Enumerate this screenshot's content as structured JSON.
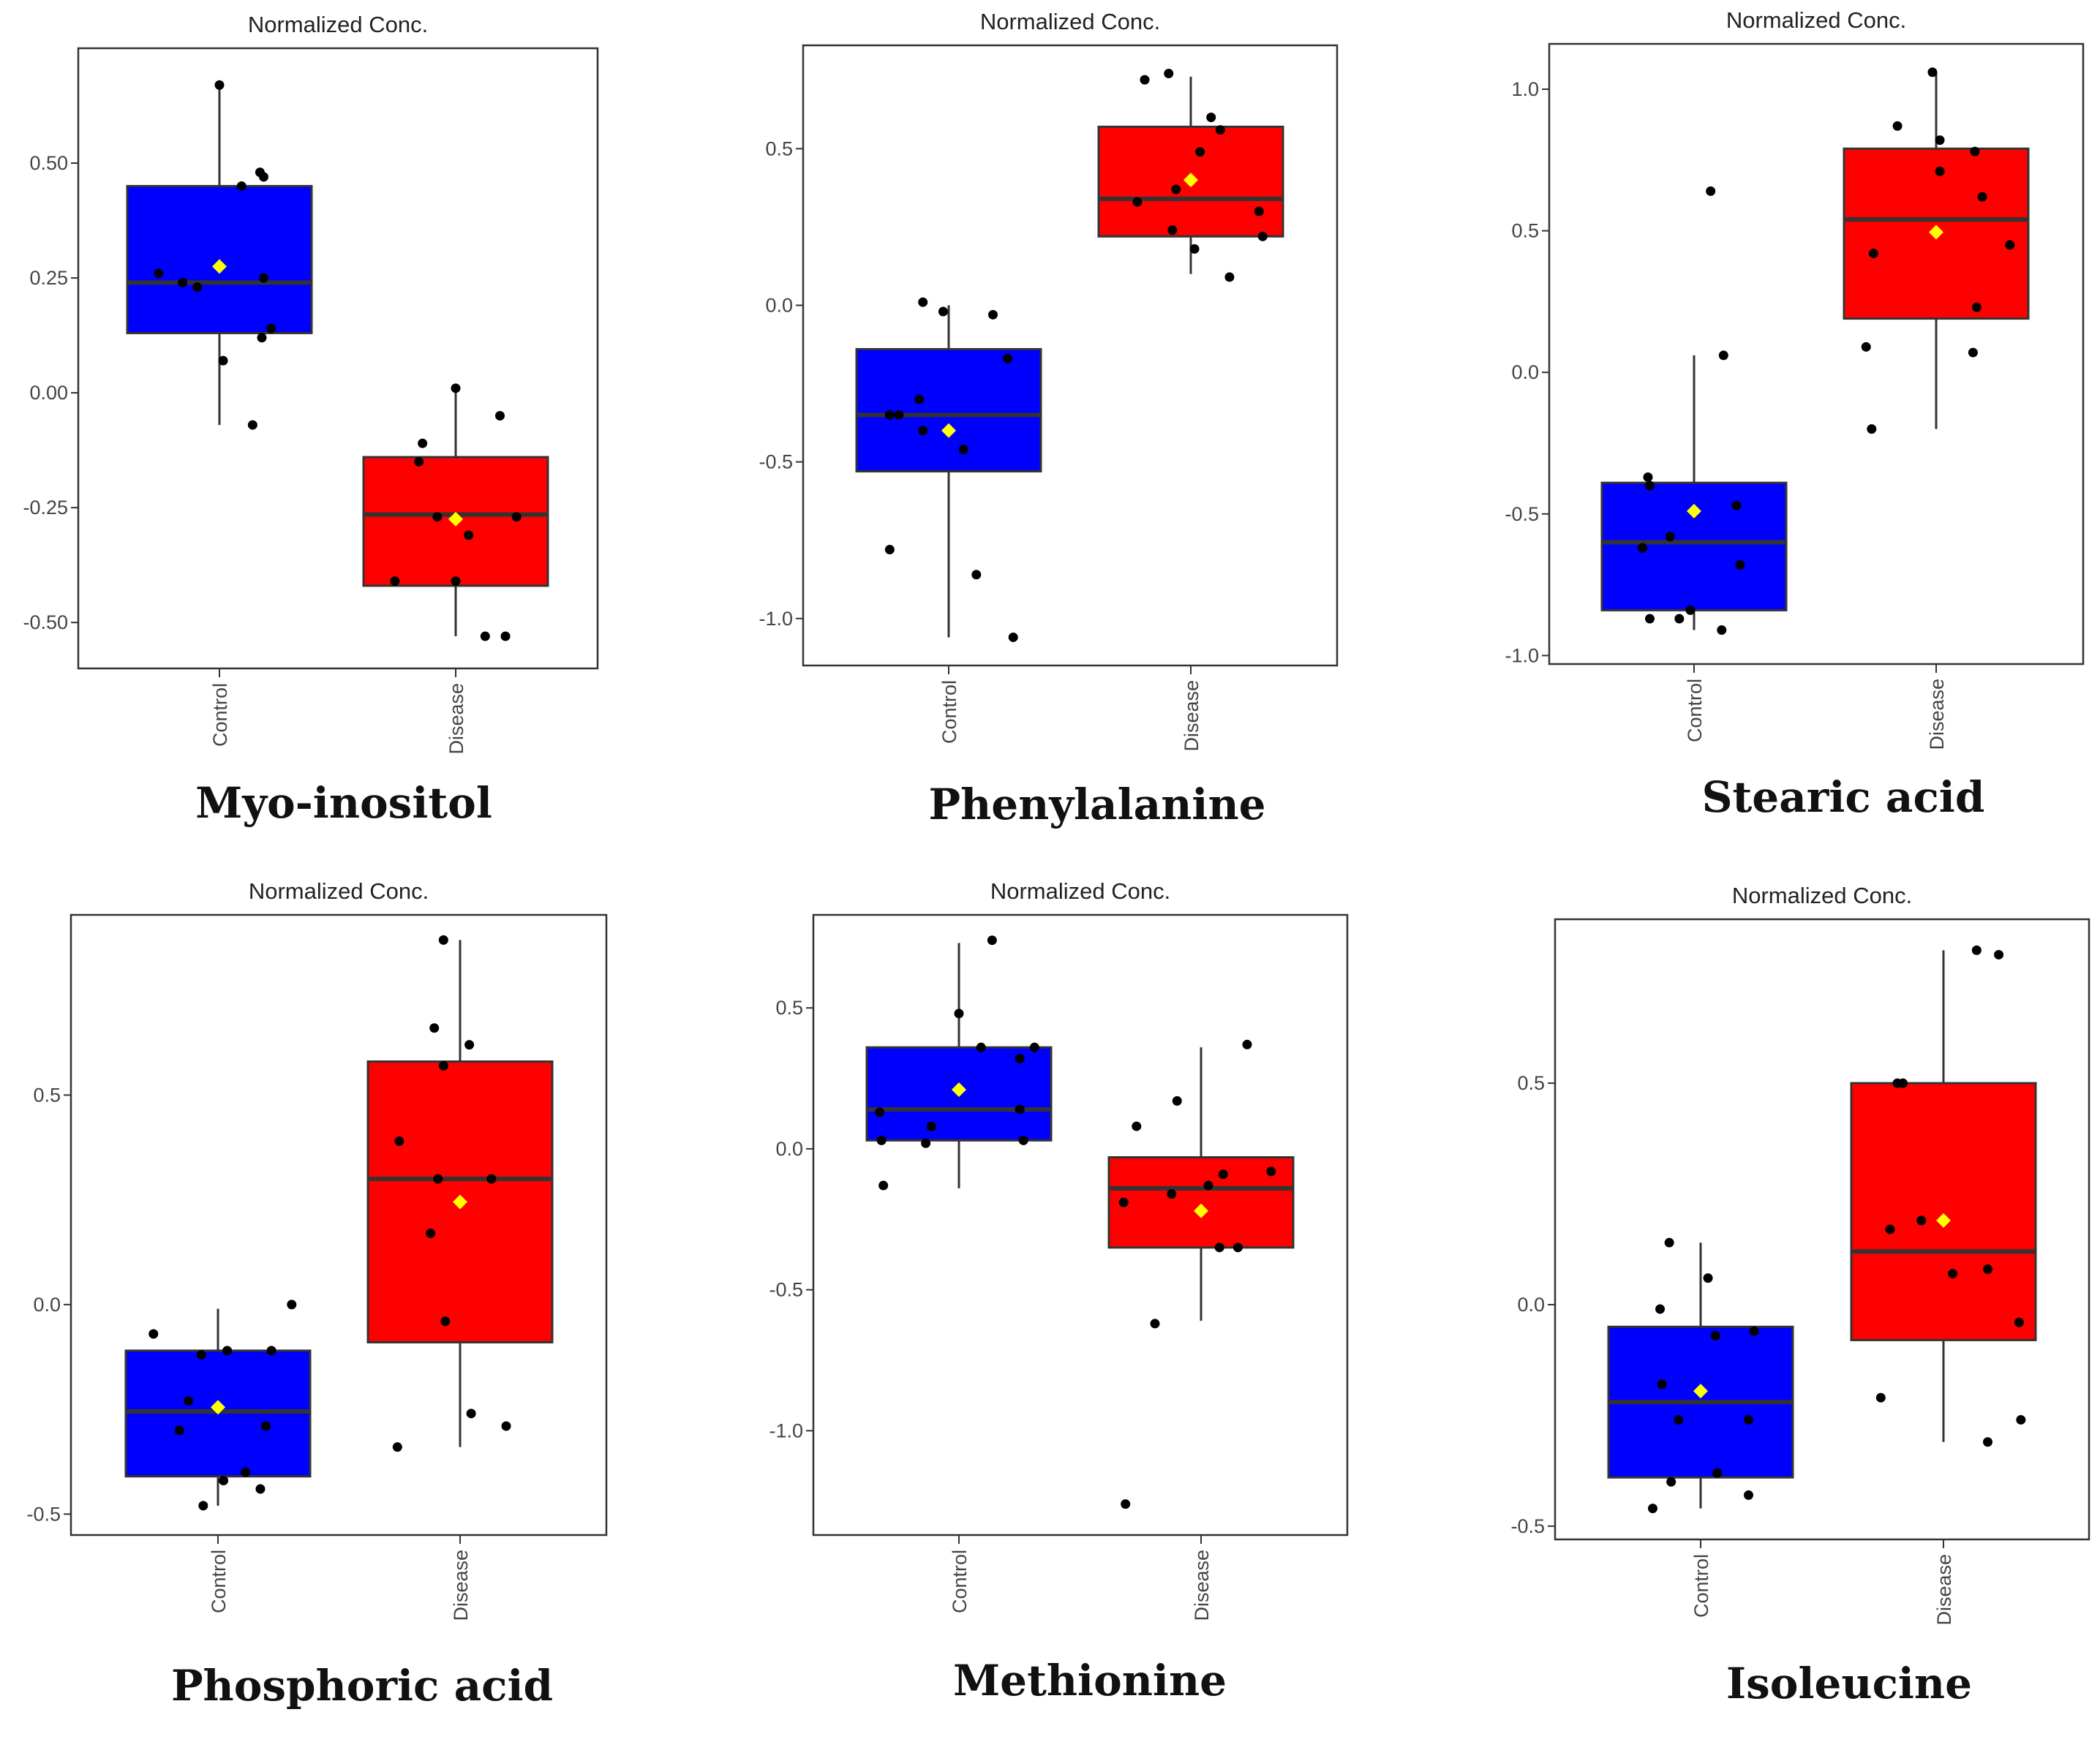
{
  "figure_title": "",
  "colors": {
    "control": "#0000ff",
    "disease": "#ff0000",
    "mean": "#ffff00",
    "median": "#333333",
    "point": "#000000",
    "frame": "#333333"
  },
  "chart_data": [
    {
      "type": "box",
      "title": "Normalized Conc.",
      "compound": "Myo-inositol",
      "categories": [
        "Control",
        "Disease"
      ],
      "ylim": [
        -0.6,
        0.75
      ],
      "yticks": [
        0.5,
        0.25,
        0.0,
        -0.25,
        -0.5
      ],
      "ytick_labels": [
        "0.50",
        "0.25",
        "0.00",
        "-0.25",
        "-0.50"
      ],
      "groups": [
        {
          "name": "Control",
          "q1": 0.13,
          "median": 0.24,
          "q3": 0.45,
          "whisker_low": -0.07,
          "whisker_high": 0.67,
          "mean": 0.275,
          "points": [
            [
              0.0,
              0.67
            ],
            [
              -0.33,
              0.26
            ],
            [
              -0.2,
              0.24
            ],
            [
              -0.12,
              0.23
            ],
            [
              0.12,
              0.45
            ],
            [
              0.22,
              0.48
            ],
            [
              0.24,
              0.47
            ],
            [
              0.24,
              0.25
            ],
            [
              0.28,
              0.14
            ],
            [
              0.23,
              0.12
            ],
            [
              0.02,
              0.07
            ],
            [
              0.18,
              -0.07
            ]
          ]
        },
        {
          "name": "Disease",
          "q1": -0.42,
          "median": -0.265,
          "q3": -0.14,
          "whisker_low": -0.53,
          "whisker_high": 0.01,
          "mean": -0.275,
          "points": [
            [
              0.0,
              0.01
            ],
            [
              0.24,
              -0.05
            ],
            [
              -0.18,
              -0.11
            ],
            [
              -0.2,
              -0.15
            ],
            [
              -0.1,
              -0.27
            ],
            [
              0.07,
              -0.31
            ],
            [
              0.0,
              -0.41
            ],
            [
              -0.33,
              -0.41
            ],
            [
              0.33,
              -0.27
            ],
            [
              0.16,
              -0.53
            ],
            [
              0.27,
              -0.53
            ]
          ]
        }
      ]
    },
    {
      "type": "box",
      "title": "Normalized Conc.",
      "compound": "Phenylalanine",
      "categories": [
        "Control",
        "Disease"
      ],
      "ylim": [
        -1.15,
        0.83
      ],
      "yticks": [
        0.5,
        0.0,
        -0.5,
        -1.0
      ],
      "ytick_labels": [
        "0.5",
        "0.0",
        "-0.5",
        "-1.0"
      ],
      "groups": [
        {
          "name": "Control",
          "q1": -0.53,
          "median": -0.35,
          "q3": -0.14,
          "whisker_low": -1.06,
          "whisker_high": 0.0,
          "mean": -0.4,
          "points": [
            [
              -0.14,
              0.01
            ],
            [
              -0.03,
              -0.02
            ],
            [
              0.24,
              -0.03
            ],
            [
              0.32,
              -0.17
            ],
            [
              -0.32,
              -0.35
            ],
            [
              -0.27,
              -0.35
            ],
            [
              -0.16,
              -0.3
            ],
            [
              -0.14,
              -0.4
            ],
            [
              0.08,
              -0.46
            ],
            [
              -0.32,
              -0.78
            ],
            [
              0.15,
              -0.86
            ],
            [
              0.35,
              -1.06
            ]
          ]
        },
        {
          "name": "Disease",
          "q1": 0.22,
          "median": 0.34,
          "q3": 0.57,
          "whisker_low": 0.1,
          "whisker_high": 0.73,
          "mean": 0.4,
          "points": [
            [
              -0.25,
              0.72
            ],
            [
              -0.12,
              0.74
            ],
            [
              0.11,
              0.6
            ],
            [
              0.16,
              0.56
            ],
            [
              0.05,
              0.49
            ],
            [
              -0.08,
              0.37
            ],
            [
              -0.29,
              0.33
            ],
            [
              -0.1,
              0.24
            ],
            [
              0.02,
              0.18
            ],
            [
              0.37,
              0.3
            ],
            [
              0.39,
              0.22
            ],
            [
              0.21,
              0.09
            ]
          ]
        }
      ]
    },
    {
      "type": "box",
      "title": "Normalized Conc.",
      "compound": "Stearic acid",
      "categories": [
        "Control",
        "Disease"
      ],
      "ylim": [
        -1.03,
        1.16
      ],
      "yticks": [
        1.0,
        0.5,
        0.0,
        -0.5,
        -1.0
      ],
      "ytick_labels": [
        "1.0",
        "0.5",
        "0.0",
        "-0.5",
        "-1.0"
      ],
      "groups": [
        {
          "name": "Control",
          "q1": -0.84,
          "median": -0.6,
          "q3": -0.39,
          "whisker_low": -0.91,
          "whisker_high": 0.06,
          "mean": -0.49,
          "points": [
            [
              0.09,
              0.64
            ],
            [
              0.16,
              0.06
            ],
            [
              -0.25,
              -0.37
            ],
            [
              -0.24,
              -0.4
            ],
            [
              0.23,
              -0.47
            ],
            [
              -0.13,
              -0.58
            ],
            [
              -0.28,
              -0.62
            ],
            [
              0.25,
              -0.68
            ],
            [
              -0.24,
              -0.87
            ],
            [
              -0.08,
              -0.87
            ],
            [
              -0.02,
              -0.84
            ],
            [
              0.15,
              -0.91
            ]
          ]
        },
        {
          "name": "Disease",
          "q1": 0.19,
          "median": 0.54,
          "q3": 0.79,
          "whisker_low": -0.2,
          "whisker_high": 1.06,
          "mean": 0.495,
          "points": [
            [
              -0.02,
              1.06
            ],
            [
              -0.21,
              0.87
            ],
            [
              0.02,
              0.82
            ],
            [
              0.02,
              0.71
            ],
            [
              0.21,
              0.78
            ],
            [
              0.25,
              0.62
            ],
            [
              0.4,
              0.45
            ],
            [
              -0.34,
              0.42
            ],
            [
              0.22,
              0.23
            ],
            [
              -0.38,
              0.09
            ],
            [
              0.2,
              0.07
            ],
            [
              -0.35,
              -0.2
            ]
          ]
        }
      ]
    },
    {
      "type": "box",
      "title": "Normalized Conc.",
      "compound": "Phosphoric acid",
      "categories": [
        "Control",
        "Disease"
      ],
      "ylim": [
        -0.55,
        0.93
      ],
      "yticks": [
        0.5,
        0.0,
        -0.5
      ],
      "ytick_labels": [
        "0.5",
        "0.0",
        "-0.5"
      ],
      "groups": [
        {
          "name": "Control",
          "q1": -0.41,
          "median": -0.255,
          "q3": -0.11,
          "whisker_low": -0.48,
          "whisker_high": -0.01,
          "mean": -0.245,
          "points": [
            [
              -0.35,
              -0.07
            ],
            [
              -0.09,
              -0.12
            ],
            [
              0.05,
              -0.11
            ],
            [
              0.29,
              -0.11
            ],
            [
              0.4,
              0.0
            ],
            [
              -0.16,
              -0.23
            ],
            [
              -0.21,
              -0.3
            ],
            [
              0.26,
              -0.29
            ],
            [
              0.15,
              -0.4
            ],
            [
              0.03,
              -0.42
            ],
            [
              0.23,
              -0.44
            ],
            [
              -0.08,
              -0.48
            ]
          ]
        },
        {
          "name": "Disease",
          "q1": -0.09,
          "median": 0.3,
          "q3": 0.58,
          "whisker_low": -0.34,
          "whisker_high": 0.87,
          "mean": 0.245,
          "points": [
            [
              -0.09,
              0.87
            ],
            [
              -0.14,
              0.66
            ],
            [
              0.05,
              0.62
            ],
            [
              -0.09,
              0.57
            ],
            [
              -0.33,
              0.39
            ],
            [
              -0.12,
              0.3
            ],
            [
              0.17,
              0.3
            ],
            [
              -0.16,
              0.17
            ],
            [
              -0.08,
              -0.04
            ],
            [
              0.06,
              -0.26
            ],
            [
              0.25,
              -0.29
            ],
            [
              -0.34,
              -0.34
            ]
          ]
        }
      ]
    },
    {
      "type": "box",
      "title": "Normalized Conc.",
      "compound": "Methionine",
      "categories": [
        "Control",
        "Disease"
      ],
      "ylim": [
        -1.37,
        0.83
      ],
      "yticks": [
        0.5,
        0.0,
        -0.5,
        -1.0
      ],
      "ytick_labels": [
        "0.5",
        "0.0",
        "-0.5",
        "-1.0"
      ],
      "groups": [
        {
          "name": "Control",
          "q1": 0.03,
          "median": 0.14,
          "q3": 0.36,
          "whisker_low": -0.14,
          "whisker_high": 0.73,
          "mean": 0.21,
          "points": [
            [
              0.18,
              0.74
            ],
            [
              0.0,
              0.48
            ],
            [
              0.12,
              0.36
            ],
            [
              0.41,
              0.36
            ],
            [
              0.33,
              0.32
            ],
            [
              -0.43,
              0.13
            ],
            [
              0.33,
              0.14
            ],
            [
              -0.15,
              0.08
            ],
            [
              -0.42,
              0.03
            ],
            [
              -0.18,
              0.02
            ],
            [
              0.35,
              0.03
            ],
            [
              -0.41,
              -0.13
            ]
          ]
        },
        {
          "name": "Disease",
          "q1": -0.35,
          "median": -0.14,
          "q3": -0.03,
          "whisker_low": -0.61,
          "whisker_high": 0.36,
          "mean": -0.22,
          "points": [
            [
              0.25,
              0.37
            ],
            [
              -0.13,
              0.17
            ],
            [
              -0.35,
              0.08
            ],
            [
              0.12,
              -0.09
            ],
            [
              0.38,
              -0.08
            ],
            [
              0.04,
              -0.13
            ],
            [
              -0.16,
              -0.16
            ],
            [
              -0.42,
              -0.19
            ],
            [
              0.1,
              -0.35
            ],
            [
              0.2,
              -0.35
            ],
            [
              -0.25,
              -0.62
            ],
            [
              -0.41,
              -1.26
            ]
          ]
        }
      ]
    },
    {
      "type": "box",
      "title": "Normalized Conc.",
      "compound": "Isoleucine",
      "categories": [
        "Control",
        "Disease"
      ],
      "ylim": [
        -0.53,
        0.87
      ],
      "yticks": [
        0.5,
        0.0,
        -0.5
      ],
      "ytick_labels": [
        "0.5",
        "0.0",
        "-0.5"
      ],
      "groups": [
        {
          "name": "Control",
          "q1": -0.39,
          "median": -0.22,
          "q3": -0.05,
          "whisker_low": -0.46,
          "whisker_high": 0.14,
          "mean": -0.195,
          "points": [
            [
              -0.17,
              0.14
            ],
            [
              0.04,
              0.06
            ],
            [
              -0.22,
              -0.01
            ],
            [
              0.08,
              -0.07
            ],
            [
              0.29,
              -0.06
            ],
            [
              -0.21,
              -0.18
            ],
            [
              -0.12,
              -0.26
            ],
            [
              0.26,
              -0.26
            ],
            [
              -0.16,
              -0.4
            ],
            [
              0.09,
              -0.38
            ],
            [
              0.26,
              -0.43
            ],
            [
              -0.26,
              -0.46
            ]
          ]
        },
        {
          "name": "Disease",
          "q1": -0.08,
          "median": 0.12,
          "q3": 0.5,
          "whisker_low": -0.31,
          "whisker_high": 0.8,
          "mean": 0.19,
          "points": [
            [
              0.18,
              0.8
            ],
            [
              0.3,
              0.79
            ],
            [
              -0.22,
              0.5
            ],
            [
              -0.25,
              0.5
            ],
            [
              -0.29,
              0.17
            ],
            [
              -0.12,
              0.19
            ],
            [
              0.05,
              0.07
            ],
            [
              0.24,
              0.08
            ],
            [
              0.41,
              -0.04
            ],
            [
              0.42,
              -0.26
            ],
            [
              -0.34,
              -0.21
            ],
            [
              0.24,
              -0.31
            ]
          ]
        }
      ]
    }
  ]
}
